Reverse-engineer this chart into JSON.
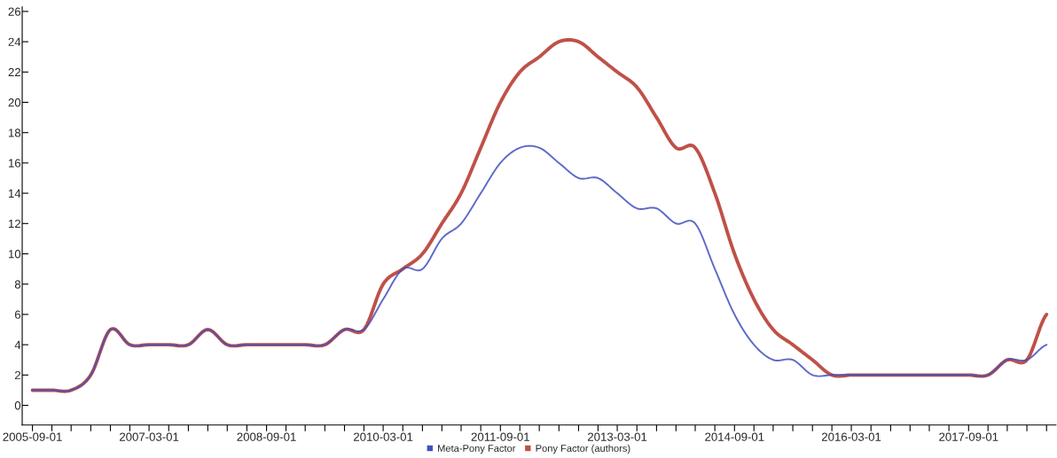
{
  "chart_data": {
    "type": "line",
    "x": [
      "2005-09-01",
      "2005-12-01",
      "2006-03-01",
      "2006-06-01",
      "2006-09-01",
      "2006-12-01",
      "2007-03-01",
      "2007-06-01",
      "2007-09-01",
      "2007-12-01",
      "2008-03-01",
      "2008-06-01",
      "2008-09-01",
      "2008-12-01",
      "2009-03-01",
      "2009-06-01",
      "2009-09-01",
      "2009-12-01",
      "2010-03-01",
      "2010-06-01",
      "2010-09-01",
      "2010-12-01",
      "2011-03-01",
      "2011-06-01",
      "2011-09-01",
      "2011-12-01",
      "2012-03-01",
      "2012-06-01",
      "2012-09-01",
      "2012-12-01",
      "2013-03-01",
      "2013-06-01",
      "2013-09-01",
      "2013-12-01",
      "2014-03-01",
      "2014-06-01",
      "2014-09-01",
      "2014-12-01",
      "2015-03-01",
      "2015-06-01",
      "2015-09-01",
      "2015-12-01",
      "2016-03-01",
      "2016-06-01",
      "2016-09-01",
      "2016-12-01",
      "2017-03-01",
      "2017-06-01",
      "2017-09-01",
      "2017-12-01",
      "2018-03-01",
      "2018-06-01",
      "2018-09-01"
    ],
    "series": [
      {
        "name": "Meta-Pony Factor",
        "color": "#4250be",
        "values": [
          1,
          1,
          1,
          2,
          5,
          4,
          4,
          4,
          4,
          5,
          4,
          4,
          4,
          4,
          4,
          4,
          5,
          5,
          7,
          9,
          9,
          11,
          12,
          14,
          16,
          17,
          17,
          16,
          15,
          15,
          14,
          13,
          13,
          12,
          12,
          9,
          6,
          4,
          3,
          3,
          2,
          2,
          2,
          2,
          2,
          2,
          2,
          2,
          2,
          2,
          3,
          3,
          4
        ]
      },
      {
        "name": "Pony Factor (authors)",
        "color": "#bf5148",
        "values": [
          1,
          1,
          1,
          2,
          5,
          4,
          4,
          4,
          4,
          5,
          4,
          4,
          4,
          4,
          4,
          4,
          5,
          5,
          8,
          9,
          10,
          12,
          14,
          17,
          20,
          22,
          23,
          24,
          24,
          23,
          22,
          21,
          19,
          17,
          17,
          14,
          10,
          7,
          5,
          4,
          3,
          2,
          2,
          2,
          2,
          2,
          2,
          2,
          2,
          2,
          3,
          3,
          6
        ]
      }
    ],
    "xlim": [
      "2005-07-15",
      "2018-10-15"
    ],
    "xticks": [
      {
        "value": "2005-09-01",
        "label": "2005-09-01"
      },
      {
        "value": "2005-12-01",
        "label": null
      },
      {
        "value": "2006-03-01",
        "label": null
      },
      {
        "value": "2006-06-01",
        "label": null
      },
      {
        "value": "2006-09-01",
        "label": null
      },
      {
        "value": "2006-12-01",
        "label": null
      },
      {
        "value": "2007-03-01",
        "label": "2007-03-01"
      },
      {
        "value": "2007-06-01",
        "label": null
      },
      {
        "value": "2007-09-01",
        "label": null
      },
      {
        "value": "2007-12-01",
        "label": null
      },
      {
        "value": "2008-03-01",
        "label": null
      },
      {
        "value": "2008-06-01",
        "label": null
      },
      {
        "value": "2008-09-01",
        "label": "2008-09-01"
      },
      {
        "value": "2008-12-01",
        "label": null
      },
      {
        "value": "2009-03-01",
        "label": null
      },
      {
        "value": "2009-06-01",
        "label": null
      },
      {
        "value": "2009-09-01",
        "label": null
      },
      {
        "value": "2009-12-01",
        "label": null
      },
      {
        "value": "2010-03-01",
        "label": "2010-03-01"
      },
      {
        "value": "2010-06-01",
        "label": null
      },
      {
        "value": "2010-09-01",
        "label": null
      },
      {
        "value": "2010-12-01",
        "label": null
      },
      {
        "value": "2011-03-01",
        "label": null
      },
      {
        "value": "2011-06-01",
        "label": null
      },
      {
        "value": "2011-09-01",
        "label": "2011-09-01"
      },
      {
        "value": "2011-12-01",
        "label": null
      },
      {
        "value": "2012-03-01",
        "label": null
      },
      {
        "value": "2012-06-01",
        "label": null
      },
      {
        "value": "2012-09-01",
        "label": null
      },
      {
        "value": "2012-12-01",
        "label": null
      },
      {
        "value": "2013-03-01",
        "label": "2013-03-01"
      },
      {
        "value": "2013-06-01",
        "label": null
      },
      {
        "value": "2013-09-01",
        "label": null
      },
      {
        "value": "2013-12-01",
        "label": null
      },
      {
        "value": "2014-03-01",
        "label": null
      },
      {
        "value": "2014-06-01",
        "label": null
      },
      {
        "value": "2014-09-01",
        "label": "2014-09-01"
      },
      {
        "value": "2014-12-01",
        "label": null
      },
      {
        "value": "2015-03-01",
        "label": null
      },
      {
        "value": "2015-06-01",
        "label": null
      },
      {
        "value": "2015-09-01",
        "label": null
      },
      {
        "value": "2015-12-01",
        "label": null
      },
      {
        "value": "2016-03-01",
        "label": "2016-03-01"
      },
      {
        "value": "2016-06-01",
        "label": null
      },
      {
        "value": "2016-09-01",
        "label": null
      },
      {
        "value": "2016-12-01",
        "label": null
      },
      {
        "value": "2017-03-01",
        "label": null
      },
      {
        "value": "2017-06-01",
        "label": null
      },
      {
        "value": "2017-09-01",
        "label": "2017-09-01"
      },
      {
        "value": "2017-12-01",
        "label": null
      },
      {
        "value": "2018-03-01",
        "label": null
      },
      {
        "value": "2018-06-01",
        "label": null
      },
      {
        "value": "2018-09-01",
        "label": null
      }
    ],
    "ylim": [
      -1.3,
      26.3
    ],
    "yticks": [
      0,
      2,
      4,
      6,
      8,
      10,
      12,
      14,
      16,
      18,
      20,
      22,
      24,
      26
    ],
    "grid": false,
    "legend": "bottom",
    "marker": "none",
    "line_style": "solid"
  }
}
